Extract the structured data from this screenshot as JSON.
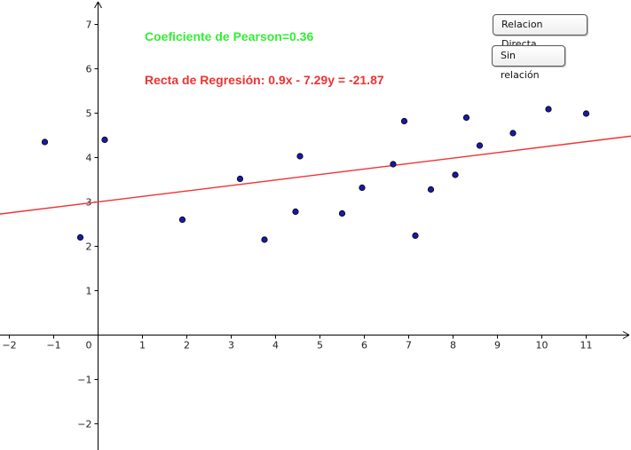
{
  "annotations": {
    "pearson": "Coeficiente de Pearson=0.36",
    "regression": "Recta de Regresión: 0.9x - 7.29y = -21.87"
  },
  "buttons": {
    "relacion_directa": "Relacion Directa",
    "sin_relacion": "Sin relación"
  },
  "chart_data": {
    "type": "scatter",
    "x_ticks": [
      "−2",
      "−1",
      "0",
      "1",
      "2",
      "3",
      "4",
      "5",
      "6",
      "7",
      "8",
      "9",
      "10",
      "11"
    ],
    "y_ticks": [
      "−2",
      "−1",
      "1",
      "2",
      "3",
      "4",
      "5",
      "6",
      "7"
    ],
    "xlim": [
      -2.2,
      12
    ],
    "ylim": [
      -2.5,
      7.5
    ],
    "grid": false,
    "points": [
      {
        "x": -1.2,
        "y": 4.35
      },
      {
        "x": -0.4,
        "y": 2.2
      },
      {
        "x": 0.15,
        "y": 4.4
      },
      {
        "x": 1.9,
        "y": 2.6
      },
      {
        "x": 3.2,
        "y": 3.52
      },
      {
        "x": 3.75,
        "y": 2.15
      },
      {
        "x": 4.45,
        "y": 2.78
      },
      {
        "x": 4.55,
        "y": 4.03
      },
      {
        "x": 5.5,
        "y": 2.74
      },
      {
        "x": 5.95,
        "y": 3.32
      },
      {
        "x": 6.65,
        "y": 3.85
      },
      {
        "x": 6.9,
        "y": 4.82
      },
      {
        "x": 7.15,
        "y": 2.24
      },
      {
        "x": 7.5,
        "y": 3.28
      },
      {
        "x": 8.05,
        "y": 3.61
      },
      {
        "x": 8.3,
        "y": 4.9
      },
      {
        "x": 8.6,
        "y": 4.27
      },
      {
        "x": 9.35,
        "y": 4.55
      },
      {
        "x": 10.15,
        "y": 5.09
      },
      {
        "x": 11.0,
        "y": 4.99
      }
    ],
    "regression_line": {
      "a": 0.9,
      "b": -7.29,
      "c": -21.87
    },
    "colors": {
      "point_fill": "#1a1aa8",
      "point_stroke": "#000000",
      "line": "#ee3333",
      "axis": "#000000"
    }
  }
}
